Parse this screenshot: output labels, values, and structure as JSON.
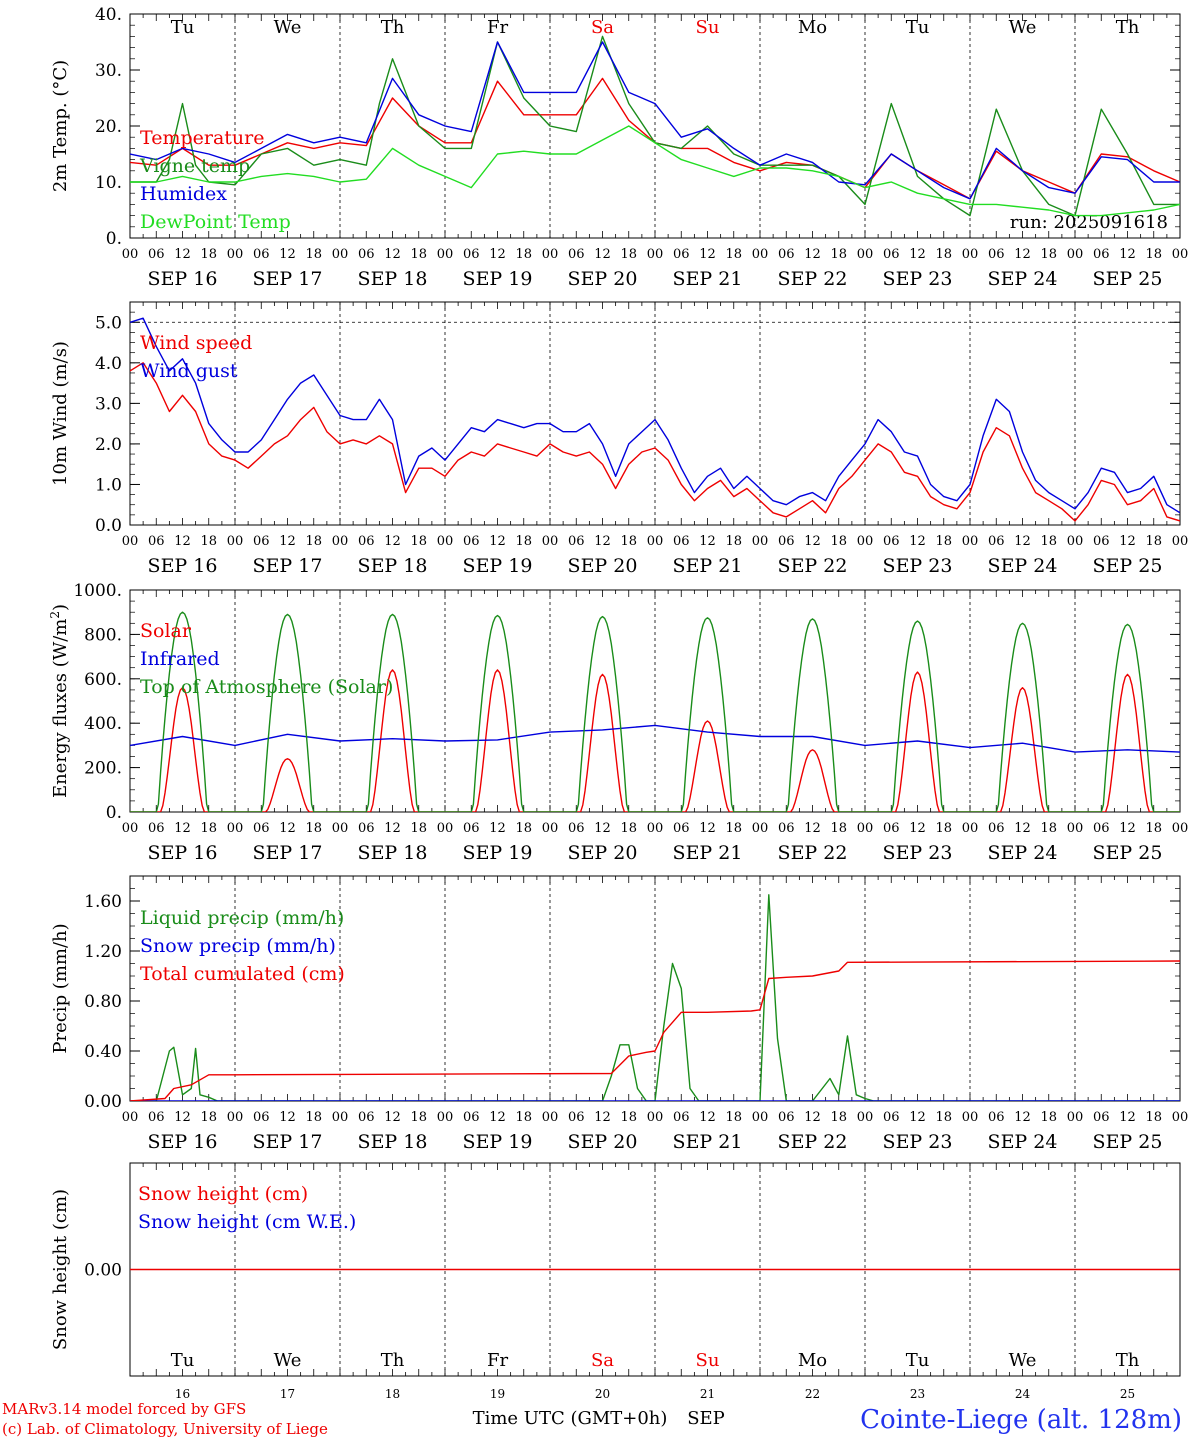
{
  "days": [
    "Tu",
    "We",
    "Th",
    "Fr",
    "Sa",
    "Su",
    "Mo",
    "Tu",
    "We",
    "Th"
  ],
  "weekend": [
    false,
    false,
    false,
    false,
    true,
    true,
    false,
    false,
    false,
    false
  ],
  "dates": [
    "SEP 16",
    "SEP 17",
    "SEP 18",
    "SEP 19",
    "SEP 20",
    "SEP 21",
    "SEP 22",
    "SEP 23",
    "SEP 24",
    "SEP 25"
  ],
  "hour_ticks": [
    "00",
    "06",
    "12",
    "18"
  ],
  "hour_end": "00",
  "bottom_daynums": [
    "16",
    "17",
    "18",
    "19",
    "20",
    "21",
    "22",
    "23",
    "24",
    "25"
  ],
  "footer": {
    "model": "MARv3.14 model forced by GFS",
    "lab": "(c) Lab. of Climatology, University of Liege",
    "xlabel": "Time UTC (GMT+0h)",
    "month": "SEP",
    "station": "Cointe-Liege (alt. 128m)"
  },
  "colors": {
    "red": "#ee0000",
    "blue": "#0000dd",
    "green": "#1a8c1a",
    "lightgreen": "#22dd22"
  },
  "chart_data": [
    {
      "type": "line",
      "ylabel": "2m Temp. (°C)",
      "ylim": [
        0,
        40
      ],
      "yticks": [
        "0.",
        "10.",
        "20.",
        "30.",
        "40."
      ],
      "run": "run: 2025091618",
      "x": "hours since SEP 16 00 UTC",
      "series": [
        {
          "name": "Temperature",
          "color": "red",
          "x": [
            0,
            6,
            12,
            18,
            24,
            30,
            36,
            42,
            48,
            54,
            60,
            66,
            72,
            78,
            84,
            90,
            96,
            102,
            108,
            114,
            120,
            126,
            132,
            138,
            144,
            150,
            156,
            162,
            168,
            174,
            180,
            186,
            192,
            198,
            204,
            210,
            216,
            222,
            228,
            234,
            240
          ],
          "y": [
            13.5,
            13,
            16,
            13,
            13,
            15,
            17,
            16,
            17,
            16.5,
            25,
            20,
            17,
            17,
            28,
            22,
            22,
            22,
            28.5,
            21,
            17,
            16,
            16,
            13.5,
            12,
            13.5,
            13,
            11,
            9,
            15,
            12,
            9.5,
            7,
            15.5,
            12,
            10,
            8,
            15,
            14.5,
            12,
            10
          ]
        },
        {
          "name": "Vigne temp",
          "color": "green",
          "x": [
            0,
            6,
            9,
            12,
            15,
            18,
            24,
            30,
            36,
            42,
            48,
            54,
            57,
            60,
            66,
            72,
            78,
            84,
            90,
            96,
            102,
            108,
            114,
            120,
            126,
            132,
            138,
            144,
            150,
            156,
            162,
            168,
            174,
            180,
            186,
            192,
            198,
            204,
            210,
            216,
            222,
            228,
            234,
            240
          ],
          "y": [
            10,
            10,
            14,
            24,
            13,
            10,
            9.5,
            15,
            16,
            13,
            14,
            13,
            24,
            32,
            20,
            16,
            16,
            35,
            25,
            20,
            19,
            36,
            24,
            17,
            16,
            20,
            15,
            13,
            13,
            13,
            11,
            6,
            24,
            11,
            7,
            4,
            23,
            12,
            6,
            4,
            23,
            15,
            6,
            6
          ]
        },
        {
          "name": "Humidex",
          "color": "blue",
          "x": [
            0,
            6,
            12,
            18,
            24,
            30,
            36,
            42,
            48,
            54,
            60,
            66,
            72,
            78,
            84,
            90,
            96,
            102,
            108,
            114,
            120,
            126,
            132,
            138,
            144,
            150,
            156,
            162,
            168,
            174,
            180,
            186,
            192,
            198,
            204,
            210,
            216,
            222,
            228,
            234,
            240
          ],
          "y": [
            15,
            14,
            16,
            15,
            13.5,
            16,
            18.5,
            17,
            18,
            17,
            28.5,
            22,
            20,
            19,
            35,
            26,
            26,
            26,
            35,
            26,
            24,
            18,
            19.5,
            16,
            13,
            15,
            13.5,
            10,
            9.5,
            15,
            12,
            9,
            7,
            16,
            12,
            9,
            8,
            14.5,
            14,
            10,
            10
          ]
        },
        {
          "name": "DewPoint Temp",
          "color": "lightgreen",
          "x": [
            0,
            6,
            12,
            18,
            24,
            30,
            36,
            42,
            48,
            54,
            60,
            66,
            72,
            78,
            84,
            90,
            96,
            102,
            108,
            114,
            120,
            126,
            132,
            138,
            144,
            150,
            156,
            162,
            168,
            174,
            180,
            186,
            192,
            198,
            204,
            210,
            216,
            222,
            228,
            234,
            240
          ],
          "y": [
            10,
            10,
            11,
            10,
            10,
            11,
            11.5,
            11,
            10,
            10.5,
            16,
            13,
            11,
            9,
            15,
            15.5,
            15,
            15,
            17.5,
            20,
            17,
            14,
            12.5,
            11,
            12.5,
            12.5,
            12,
            11,
            9,
            10,
            8,
            7,
            6,
            6,
            5.5,
            5,
            4,
            4,
            4.5,
            5,
            6
          ]
        }
      ]
    },
    {
      "type": "line",
      "ylabel": "10m Wind (m/s)",
      "ylim": [
        0,
        5.5
      ],
      "yticks": [
        "0.0",
        "1.0",
        "2.0",
        "3.0",
        "4.0",
        "5.0"
      ],
      "series": [
        {
          "name": "Wind speed",
          "color": "red",
          "x": [
            0,
            3,
            6,
            9,
            12,
            15,
            18,
            21,
            24,
            27,
            30,
            33,
            36,
            39,
            42,
            45,
            48,
            51,
            54,
            57,
            60,
            63,
            66,
            69,
            72,
            75,
            78,
            81,
            84,
            87,
            90,
            93,
            96,
            99,
            102,
            105,
            108,
            111,
            114,
            117,
            120,
            123,
            126,
            129,
            132,
            135,
            138,
            141,
            144,
            147,
            150,
            153,
            156,
            159,
            162,
            165,
            168,
            171,
            174,
            177,
            180,
            183,
            186,
            189,
            192,
            195,
            198,
            201,
            204,
            207,
            210,
            213,
            216,
            219,
            222,
            225,
            228,
            231,
            234,
            237,
            240
          ],
          "y": [
            3.8,
            4.0,
            3.5,
            2.8,
            3.2,
            2.8,
            2.0,
            1.7,
            1.6,
            1.4,
            1.7,
            2.0,
            2.2,
            2.6,
            2.9,
            2.3,
            2.0,
            2.1,
            2.0,
            2.2,
            2.0,
            0.8,
            1.4,
            1.4,
            1.2,
            1.6,
            1.8,
            1.7,
            2.0,
            1.9,
            1.8,
            1.7,
            2.0,
            1.8,
            1.7,
            1.8,
            1.5,
            0.9,
            1.5,
            1.8,
            1.9,
            1.6,
            1.0,
            0.6,
            0.9,
            1.1,
            0.7,
            0.9,
            0.6,
            0.3,
            0.2,
            0.4,
            0.6,
            0.3,
            0.9,
            1.2,
            1.6,
            2.0,
            1.8,
            1.3,
            1.2,
            0.7,
            0.5,
            0.4,
            0.8,
            1.8,
            2.4,
            2.2,
            1.4,
            0.8,
            0.6,
            0.4,
            0.1,
            0.5,
            1.1,
            1.0,
            0.5,
            0.6,
            0.9,
            0.2,
            0.1
          ]
        },
        {
          "name": "Wind gust",
          "color": "blue",
          "x": [
            0,
            3,
            6,
            9,
            12,
            15,
            18,
            21,
            24,
            27,
            30,
            33,
            36,
            39,
            42,
            45,
            48,
            51,
            54,
            57,
            60,
            63,
            66,
            69,
            72,
            75,
            78,
            81,
            84,
            87,
            90,
            93,
            96,
            99,
            102,
            105,
            108,
            111,
            114,
            117,
            120,
            123,
            126,
            129,
            132,
            135,
            138,
            141,
            144,
            147,
            150,
            153,
            156,
            159,
            162,
            165,
            168,
            171,
            174,
            177,
            180,
            183,
            186,
            189,
            192,
            195,
            198,
            201,
            204,
            207,
            210,
            213,
            216,
            219,
            222,
            225,
            228,
            231,
            234,
            237,
            240
          ],
          "y": [
            5.0,
            5.1,
            4.4,
            3.8,
            4.1,
            3.5,
            2.5,
            2.1,
            1.8,
            1.8,
            2.1,
            2.6,
            3.1,
            3.5,
            3.7,
            3.2,
            2.7,
            2.6,
            2.6,
            3.1,
            2.6,
            1.0,
            1.7,
            1.9,
            1.6,
            2.0,
            2.4,
            2.3,
            2.6,
            2.5,
            2.4,
            2.5,
            2.5,
            2.3,
            2.3,
            2.5,
            2.0,
            1.2,
            2.0,
            2.3,
            2.6,
            2.1,
            1.4,
            0.8,
            1.2,
            1.4,
            0.9,
            1.2,
            0.9,
            0.6,
            0.5,
            0.7,
            0.8,
            0.6,
            1.2,
            1.6,
            2.0,
            2.6,
            2.3,
            1.8,
            1.7,
            1.0,
            0.7,
            0.6,
            1.0,
            2.2,
            3.1,
            2.8,
            1.8,
            1.1,
            0.8,
            0.6,
            0.4,
            0.8,
            1.4,
            1.3,
            0.8,
            0.9,
            1.2,
            0.5,
            0.3
          ]
        }
      ]
    },
    {
      "type": "line",
      "ylabel": "Energy fluxes (W/m²)",
      "ylim": [
        0,
        1000
      ],
      "yticks": [
        "0.",
        "200.",
        "400.",
        "600.",
        "800.",
        "1000."
      ],
      "series": [
        {
          "name": "Solar",
          "color": "red",
          "day_peaks": [
            560,
            240,
            640,
            640,
            620,
            410,
            280,
            630,
            560,
            620
          ]
        },
        {
          "name": "Infrared",
          "color": "blue",
          "x": [
            0,
            12,
            24,
            36,
            48,
            60,
            72,
            84,
            96,
            108,
            120,
            132,
            144,
            156,
            168,
            180,
            192,
            204,
            216,
            228,
            240
          ],
          "y": [
            300,
            340,
            300,
            350,
            320,
            330,
            320,
            325,
            360,
            370,
            390,
            360,
            340,
            340,
            300,
            320,
            290,
            310,
            270,
            280,
            270
          ]
        },
        {
          "name": "Top of Atmosphere (Solar)",
          "color": "green",
          "day_peaks": [
            900,
            890,
            890,
            885,
            880,
            875,
            870,
            860,
            850,
            845
          ]
        }
      ]
    },
    {
      "type": "line",
      "ylabel": "Precip (mm/h)",
      "ylim": [
        0,
        1.8
      ],
      "yticks": [
        "0.00",
        "0.40",
        "0.80",
        "1.20",
        "1.60"
      ],
      "series": [
        {
          "name": "Liquid precip (mm/h)",
          "color": "green",
          "x": [
            0,
            6,
            9,
            10,
            12,
            14,
            15,
            16,
            18,
            20,
            24,
            108,
            110,
            112,
            114,
            116,
            118,
            120,
            122,
            124,
            126,
            128,
            130,
            132,
            134,
            140,
            144,
            146,
            148,
            150,
            152,
            156,
            160,
            162,
            164,
            166,
            168,
            170,
            240
          ],
          "y": [
            0,
            0,
            0.4,
            0.43,
            0.05,
            0.1,
            0.42,
            0.05,
            0.03,
            0,
            0,
            0,
            0.2,
            0.45,
            0.45,
            0.1,
            0,
            0,
            0.6,
            1.1,
            0.9,
            0.1,
            0,
            0,
            0,
            0,
            0,
            1.65,
            0.5,
            0,
            0,
            0,
            0.18,
            0.05,
            0.52,
            0.05,
            0.02,
            0,
            0
          ]
        },
        {
          "name": "Snow precip (mm/h)",
          "color": "blue",
          "x": [
            0,
            240
          ],
          "y": [
            0,
            0
          ]
        },
        {
          "name": "Total cumulated (cm)",
          "color": "red",
          "x": [
            0,
            8,
            10,
            14,
            18,
            24,
            110,
            114,
            118,
            120,
            122,
            126,
            132,
            142,
            144,
            146,
            150,
            156,
            162,
            164,
            240
          ],
          "y": [
            0,
            0.02,
            0.1,
            0.13,
            0.21,
            0.21,
            0.22,
            0.36,
            0.39,
            0.4,
            0.55,
            0.71,
            0.71,
            0.72,
            0.73,
            0.98,
            0.99,
            1.0,
            1.04,
            1.11,
            1.12
          ]
        }
      ]
    },
    {
      "type": "line",
      "ylabel": "Snow height (cm)",
      "ylim": [
        -1,
        1
      ],
      "yticks": [
        "0.00"
      ],
      "series": [
        {
          "name": "Snow height (cm)",
          "color": "red",
          "x": [
            0,
            240
          ],
          "y": [
            0,
            0
          ]
        },
        {
          "name": "Snow height (cm W.E.)",
          "color": "blue"
        }
      ]
    }
  ]
}
